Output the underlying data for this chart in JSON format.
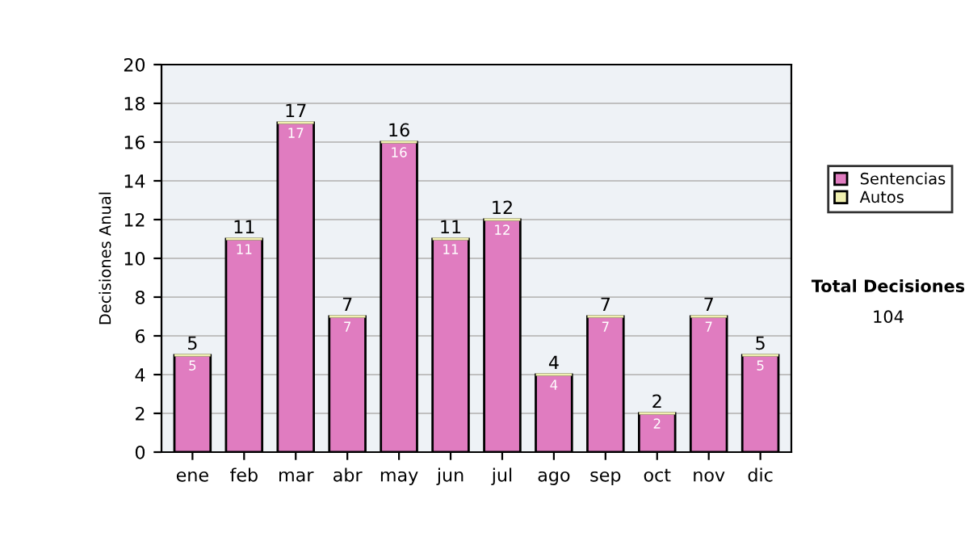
{
  "chart_data": {
    "type": "bar",
    "stacked": true,
    "ylabel": "Decisiones Anual",
    "categories": [
      "ene",
      "feb",
      "mar",
      "abr",
      "may",
      "jun",
      "jul",
      "ago",
      "sep",
      "oct",
      "nov",
      "dic"
    ],
    "series": [
      {
        "name": "Sentencias",
        "color": "#e07cc0",
        "values": [
          5,
          11,
          17,
          7,
          16,
          11,
          12,
          4,
          7,
          2,
          7,
          5
        ],
        "value_labels": [
          "5",
          "11",
          "17",
          "7",
          "16",
          "11",
          "12",
          "4",
          "7",
          "2",
          "7",
          "5"
        ]
      },
      {
        "name": "Autos",
        "color": "#f0f0b0",
        "values": [
          0,
          0,
          0,
          0,
          0,
          0,
          0,
          0,
          0,
          0,
          0,
          0
        ],
        "value_labels": [
          null,
          null,
          null,
          null,
          null,
          null,
          null,
          null,
          null,
          null,
          null,
          null
        ]
      }
    ],
    "totals": [
      "5",
      "11",
      "17",
      "7",
      "16",
      "11",
      "12",
      "4",
      "7",
      "2",
      "7",
      "5"
    ],
    "ylim": [
      0,
      20
    ],
    "yticks": [
      0,
      2,
      4,
      6,
      8,
      10,
      12,
      14,
      16,
      18,
      20
    ],
    "grid": "y",
    "legend": "right",
    "annotations": [
      "Total Decisiones",
      "104"
    ]
  }
}
